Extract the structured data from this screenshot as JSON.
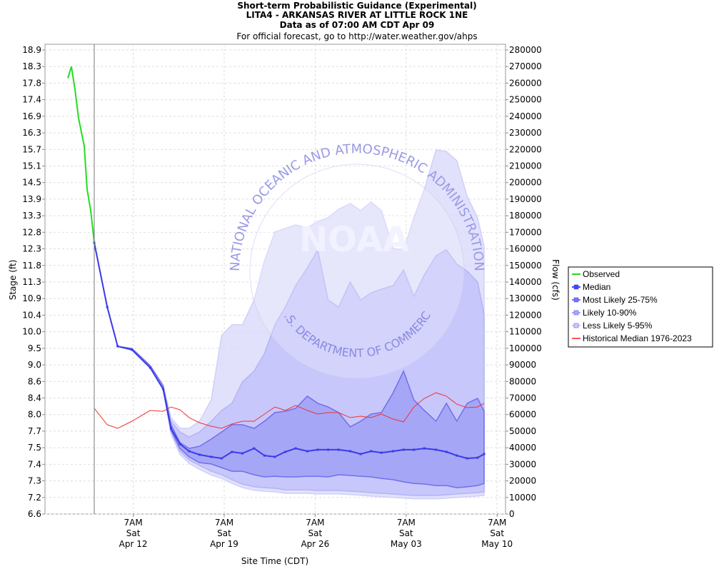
{
  "chart_data": {
    "type": "area",
    "title": "Short-term Probabilistic Guidance (Experimental)",
    "subtitle": "LITA4 - ARKANSAS RIVER AT LITTLE ROCK 1NE",
    "data_as_of": "Data as of 07:00 AM CDT Apr 09",
    "note": "For official forecast, go to http://water.weather.gov/ahps",
    "xlabel": "Site Time (CDT)",
    "ylabel_left": "Stage (ft)",
    "ylabel_right": "Flow (cfs)",
    "x_units": "days after 07:00 AM CDT Apr 09",
    "xlim": [
      -3.8,
      31.6
    ],
    "ylim_flow": [
      0,
      280000
    ],
    "grid": true,
    "legend_position": "right",
    "x_ticks": [
      {
        "day": 3,
        "l1": "7AM",
        "l2": "Sat",
        "l3": "Apr 12"
      },
      {
        "day": 10,
        "l1": "7AM",
        "l2": "Sat",
        "l3": "Apr 19"
      },
      {
        "day": 17,
        "l1": "7AM",
        "l2": "Sat",
        "l3": "Apr 26"
      },
      {
        "day": 24,
        "l1": "7AM",
        "l2": "Sat",
        "l3": "May 03"
      },
      {
        "day": 31,
        "l1": "7AM",
        "l2": "Sat",
        "l3": "May 10"
      }
    ],
    "flow_ticks": [
      0,
      10000,
      20000,
      30000,
      40000,
      50000,
      60000,
      70000,
      80000,
      90000,
      100000,
      110000,
      120000,
      130000,
      140000,
      150000,
      160000,
      170000,
      180000,
      190000,
      200000,
      210000,
      220000,
      230000,
      240000,
      250000,
      260000,
      270000,
      280000
    ],
    "stage_ticks": [
      "6.6",
      "7.2",
      "7.3",
      "7.4",
      "7.5",
      "7.7",
      "8.0",
      "8.4",
      "8.6",
      "9.0",
      "9.5",
      "10.0",
      "10.4",
      "10.9",
      "11.3",
      "11.8",
      "12.3",
      "12.8",
      "13.3",
      "13.9",
      "14.5",
      "15.1",
      "15.7",
      "16.3",
      "16.9",
      "17.4",
      "17.8",
      "18.3",
      "18.9"
    ],
    "forecast_start_day": 0,
    "observed": {
      "days": [
        -2.03,
        -1.76,
        -1.48,
        -1.21,
        -0.77,
        -0.55,
        -0.27,
        0
      ],
      "flow": [
        263000,
        270000,
        256000,
        239000,
        222000,
        196000,
        183000,
        164000
      ]
    },
    "forecast_days": [
      0,
      1.0,
      1.8,
      2.9,
      4.3,
      5.3,
      5.9,
      6.6,
      7.3,
      8.1,
      9.0,
      9.8,
      10.6,
      11.4,
      12.3,
      13.1,
      13.9,
      14.7,
      15.5,
      16.4,
      17.2,
      18.0,
      18.8,
      19.7,
      20.5,
      21.3,
      22.1,
      23.0,
      23.8,
      24.6,
      25.4,
      26.3,
      27.1,
      27.9,
      28.7,
      29.5,
      30.0
    ],
    "series": [
      {
        "name": "p95",
        "flow": [
          163700,
          124900,
          101200,
          99900,
          89600,
          77500,
          58200,
          51700,
          51700,
          56000,
          68900,
          107700,
          114200,
          114200,
          129200,
          152900,
          170200,
          172300,
          174500,
          172700,
          176600,
          178800,
          183900,
          187400,
          183100,
          188300,
          183100,
          160300,
          159400,
          178800,
          196000,
          219700,
          218800,
          213200,
          191700,
          178800,
          161500
        ]
      },
      {
        "name": "p90",
        "flow": [
          163700,
          124900,
          101200,
          99900,
          89600,
          77500,
          56000,
          49500,
          46500,
          49500,
          56000,
          62500,
          66800,
          79700,
          86200,
          96900,
          114200,
          124900,
          137900,
          148600,
          159400,
          129200,
          124900,
          140000,
          129200,
          133500,
          135700,
          137900,
          147300,
          131400,
          144300,
          155900,
          159400,
          150800,
          146500,
          140000,
          120600
        ]
      },
      {
        "name": "p75",
        "flow": [
          163700,
          124900,
          101200,
          99900,
          89600,
          77500,
          53900,
          43100,
          39600,
          40900,
          45200,
          49500,
          53900,
          53900,
          51700,
          56000,
          61200,
          62000,
          63800,
          71100,
          66800,
          64600,
          61200,
          52600,
          56000,
          60300,
          61200,
          73200,
          86200,
          68900,
          62500,
          56000,
          66800,
          56000,
          66800,
          69800,
          62000
        ]
      },
      {
        "name": "median",
        "flow": [
          163700,
          124900,
          101200,
          99100,
          88300,
          75400,
          51700,
          42200,
          37900,
          35800,
          34500,
          33600,
          37500,
          36600,
          39600,
          35300,
          34500,
          37500,
          39600,
          37900,
          38800,
          38800,
          38800,
          37900,
          36200,
          37900,
          37000,
          37900,
          38800,
          38800,
          39600,
          38800,
          37500,
          35300,
          33600,
          34000,
          36200
        ]
      },
      {
        "name": "p25",
        "flow": [
          163700,
          124900,
          101200,
          99100,
          88300,
          75400,
          50800,
          39600,
          34500,
          31000,
          30200,
          28000,
          25800,
          25800,
          23700,
          22400,
          22800,
          22400,
          22400,
          22800,
          22800,
          22400,
          23700,
          23300,
          22800,
          22400,
          21500,
          20700,
          19400,
          18500,
          18100,
          17200,
          17200,
          15900,
          16400,
          17200,
          18500
        ]
      },
      {
        "name": "p10",
        "flow": [
          163700,
          124900,
          101200,
          99100,
          88300,
          75400,
          50000,
          37900,
          32700,
          29300,
          25800,
          23700,
          20700,
          18100,
          16400,
          15900,
          15500,
          14600,
          14600,
          14600,
          14200,
          14200,
          14200,
          13800,
          13400,
          12900,
          12500,
          12100,
          11600,
          11200,
          11200,
          11200,
          11600,
          12100,
          12500,
          12900,
          13400
        ]
      },
      {
        "name": "p5",
        "flow": [
          163700,
          124900,
          101200,
          99100,
          88300,
          75400,
          48500,
          36000,
          30500,
          27000,
          23500,
          21500,
          18500,
          16000,
          14300,
          13800,
          13400,
          12500,
          12500,
          12500,
          12100,
          12100,
          12100,
          11700,
          11300,
          10800,
          10400,
          10000,
          9600,
          9200,
          9200,
          9200,
          9600,
          10000,
          10400,
          10800,
          11300
        ]
      },
      {
        "name": "historical_median",
        "flow": [
          63800,
          53900,
          51700,
          56000,
          62500,
          62000,
          64600,
          62900,
          58200,
          55100,
          53000,
          51700,
          54300,
          56000,
          56000,
          60300,
          64600,
          62500,
          65500,
          62500,
          60300,
          61200,
          61200,
          58200,
          59000,
          58200,
          60300,
          57300,
          55600,
          64600,
          69800,
          73200,
          71100,
          66300,
          64200,
          64600,
          66800
        ]
      }
    ],
    "legend": [
      {
        "label": "Observed",
        "color": "#22dd22"
      },
      {
        "label": "Median",
        "color": "#4444ee"
      },
      {
        "label": "Most Likely 25-75%",
        "color": "#7777ee"
      },
      {
        "label": "Likely 10-90%",
        "color": "#aaaaf4"
      },
      {
        "label": "Less Likely 5-95%",
        "color": "#ccccf8"
      },
      {
        "label": "Historical Median 1976-2023",
        "color": "#ff5555"
      }
    ],
    "colors": {
      "band_5_95": "#dcdcfc",
      "band_10_90": "#c2c2fa",
      "band_25_75": "#a0a0f6",
      "median": "#3a3aea",
      "observed": "#22dd22",
      "historical": "#ee3333"
    },
    "watermark": {
      "logo": "NOAA",
      "ring_top": "NATIONAL OCEANIC AND ATMOSPHERIC ADMINISTRATION",
      "ring_bottom": "U.S. DEPARTMENT OF COMMERCE"
    }
  }
}
